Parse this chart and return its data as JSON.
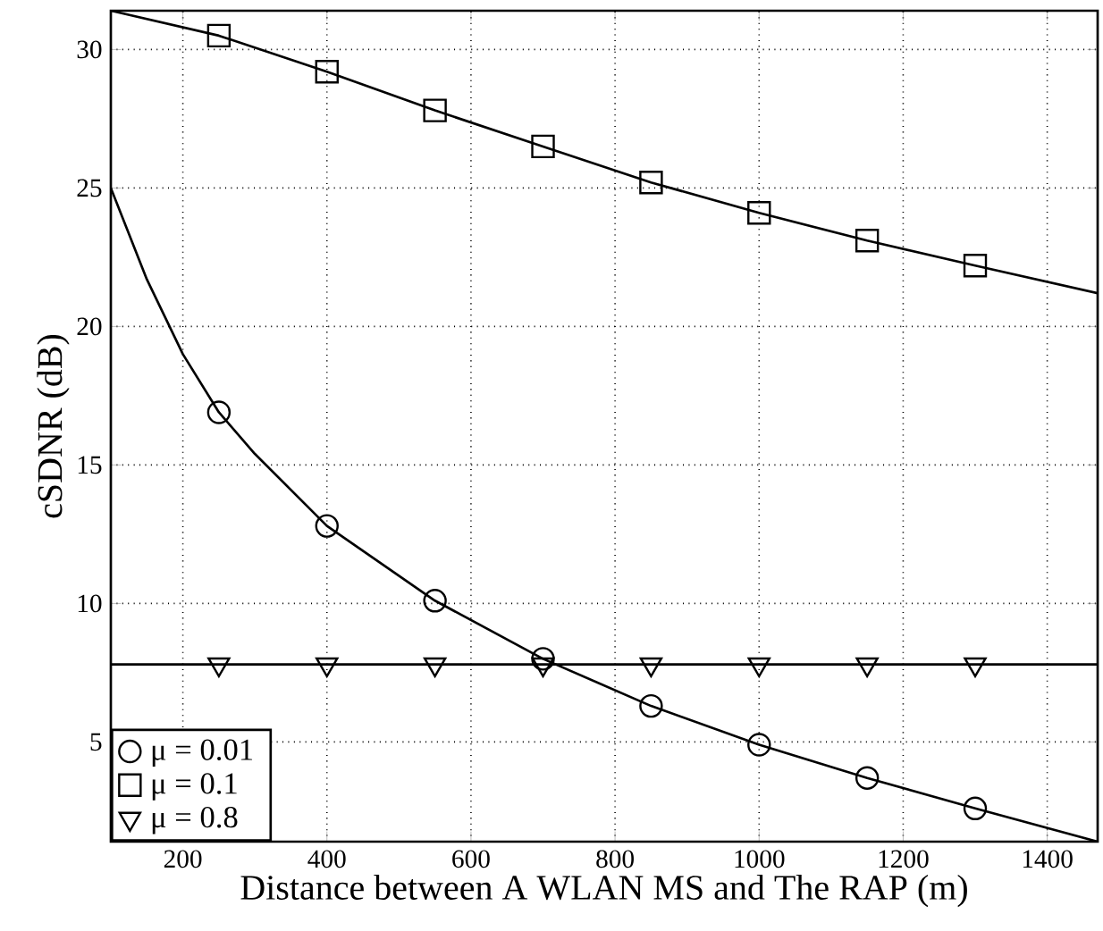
{
  "chart_data": {
    "type": "line",
    "xlabel": "Distance between A WLAN MS and The RAP (m)",
    "ylabel": "cSDNR (dB)",
    "xlim": [
      100,
      1470
    ],
    "ylim": [
      1.4,
      31.4
    ],
    "xticks": [
      200,
      400,
      600,
      800,
      1000,
      1200,
      1400
    ],
    "yticks": [
      5,
      10,
      15,
      20,
      25,
      30
    ],
    "grid": true,
    "legend": "bottom left",
    "line_style": "solid",
    "series": [
      {
        "color": "#000000",
        "marker": "none",
        "x": [
          100,
          150,
          200,
          250,
          300,
          400,
          550,
          700,
          850,
          1000,
          1150,
          1300,
          1470
        ],
        "values": [
          25.0,
          21.7,
          19.0,
          16.9,
          15.4,
          12.8,
          10.1,
          8.0,
          6.3,
          4.9,
          3.7,
          2.6,
          1.4
        ]
      },
      {
        "color": "#000000",
        "marker": "none",
        "x": [
          100,
          250,
          400,
          550,
          700,
          850,
          1000,
          1150,
          1300,
          1470
        ],
        "values": [
          31.4,
          30.5,
          29.2,
          27.8,
          26.5,
          25.2,
          24.1,
          23.1,
          22.2,
          21.2
        ]
      },
      {
        "color": "#000000",
        "marker": "none",
        "x": [
          100,
          1470
        ],
        "values": [
          7.8,
          7.8
        ]
      },
      {
        "type": "scatter",
        "name": "μ = 0.01",
        "color": "#000000",
        "marker": "circle",
        "x": [
          250,
          400,
          550,
          700,
          850,
          1000,
          1150,
          1300
        ],
        "values": [
          16.9,
          12.8,
          10.1,
          8.0,
          6.3,
          4.9,
          3.7,
          2.6
        ]
      },
      {
        "type": "scatter",
        "name": "μ = 0.1",
        "color": "#000000",
        "marker": "square",
        "x": [
          250,
          400,
          550,
          700,
          850,
          1000,
          1150,
          1300
        ],
        "values": [
          30.5,
          29.2,
          27.8,
          26.5,
          25.2,
          24.1,
          23.1,
          22.2
        ]
      },
      {
        "type": "scatter",
        "name": "μ = 0.8",
        "color": "#000000",
        "marker": "triangle",
        "x": [
          250,
          400,
          550,
          700,
          850,
          1000,
          1150,
          1300
        ],
        "values": [
          7.8,
          7.8,
          7.8,
          7.8,
          7.8,
          7.8,
          7.8,
          7.8
        ]
      }
    ]
  }
}
